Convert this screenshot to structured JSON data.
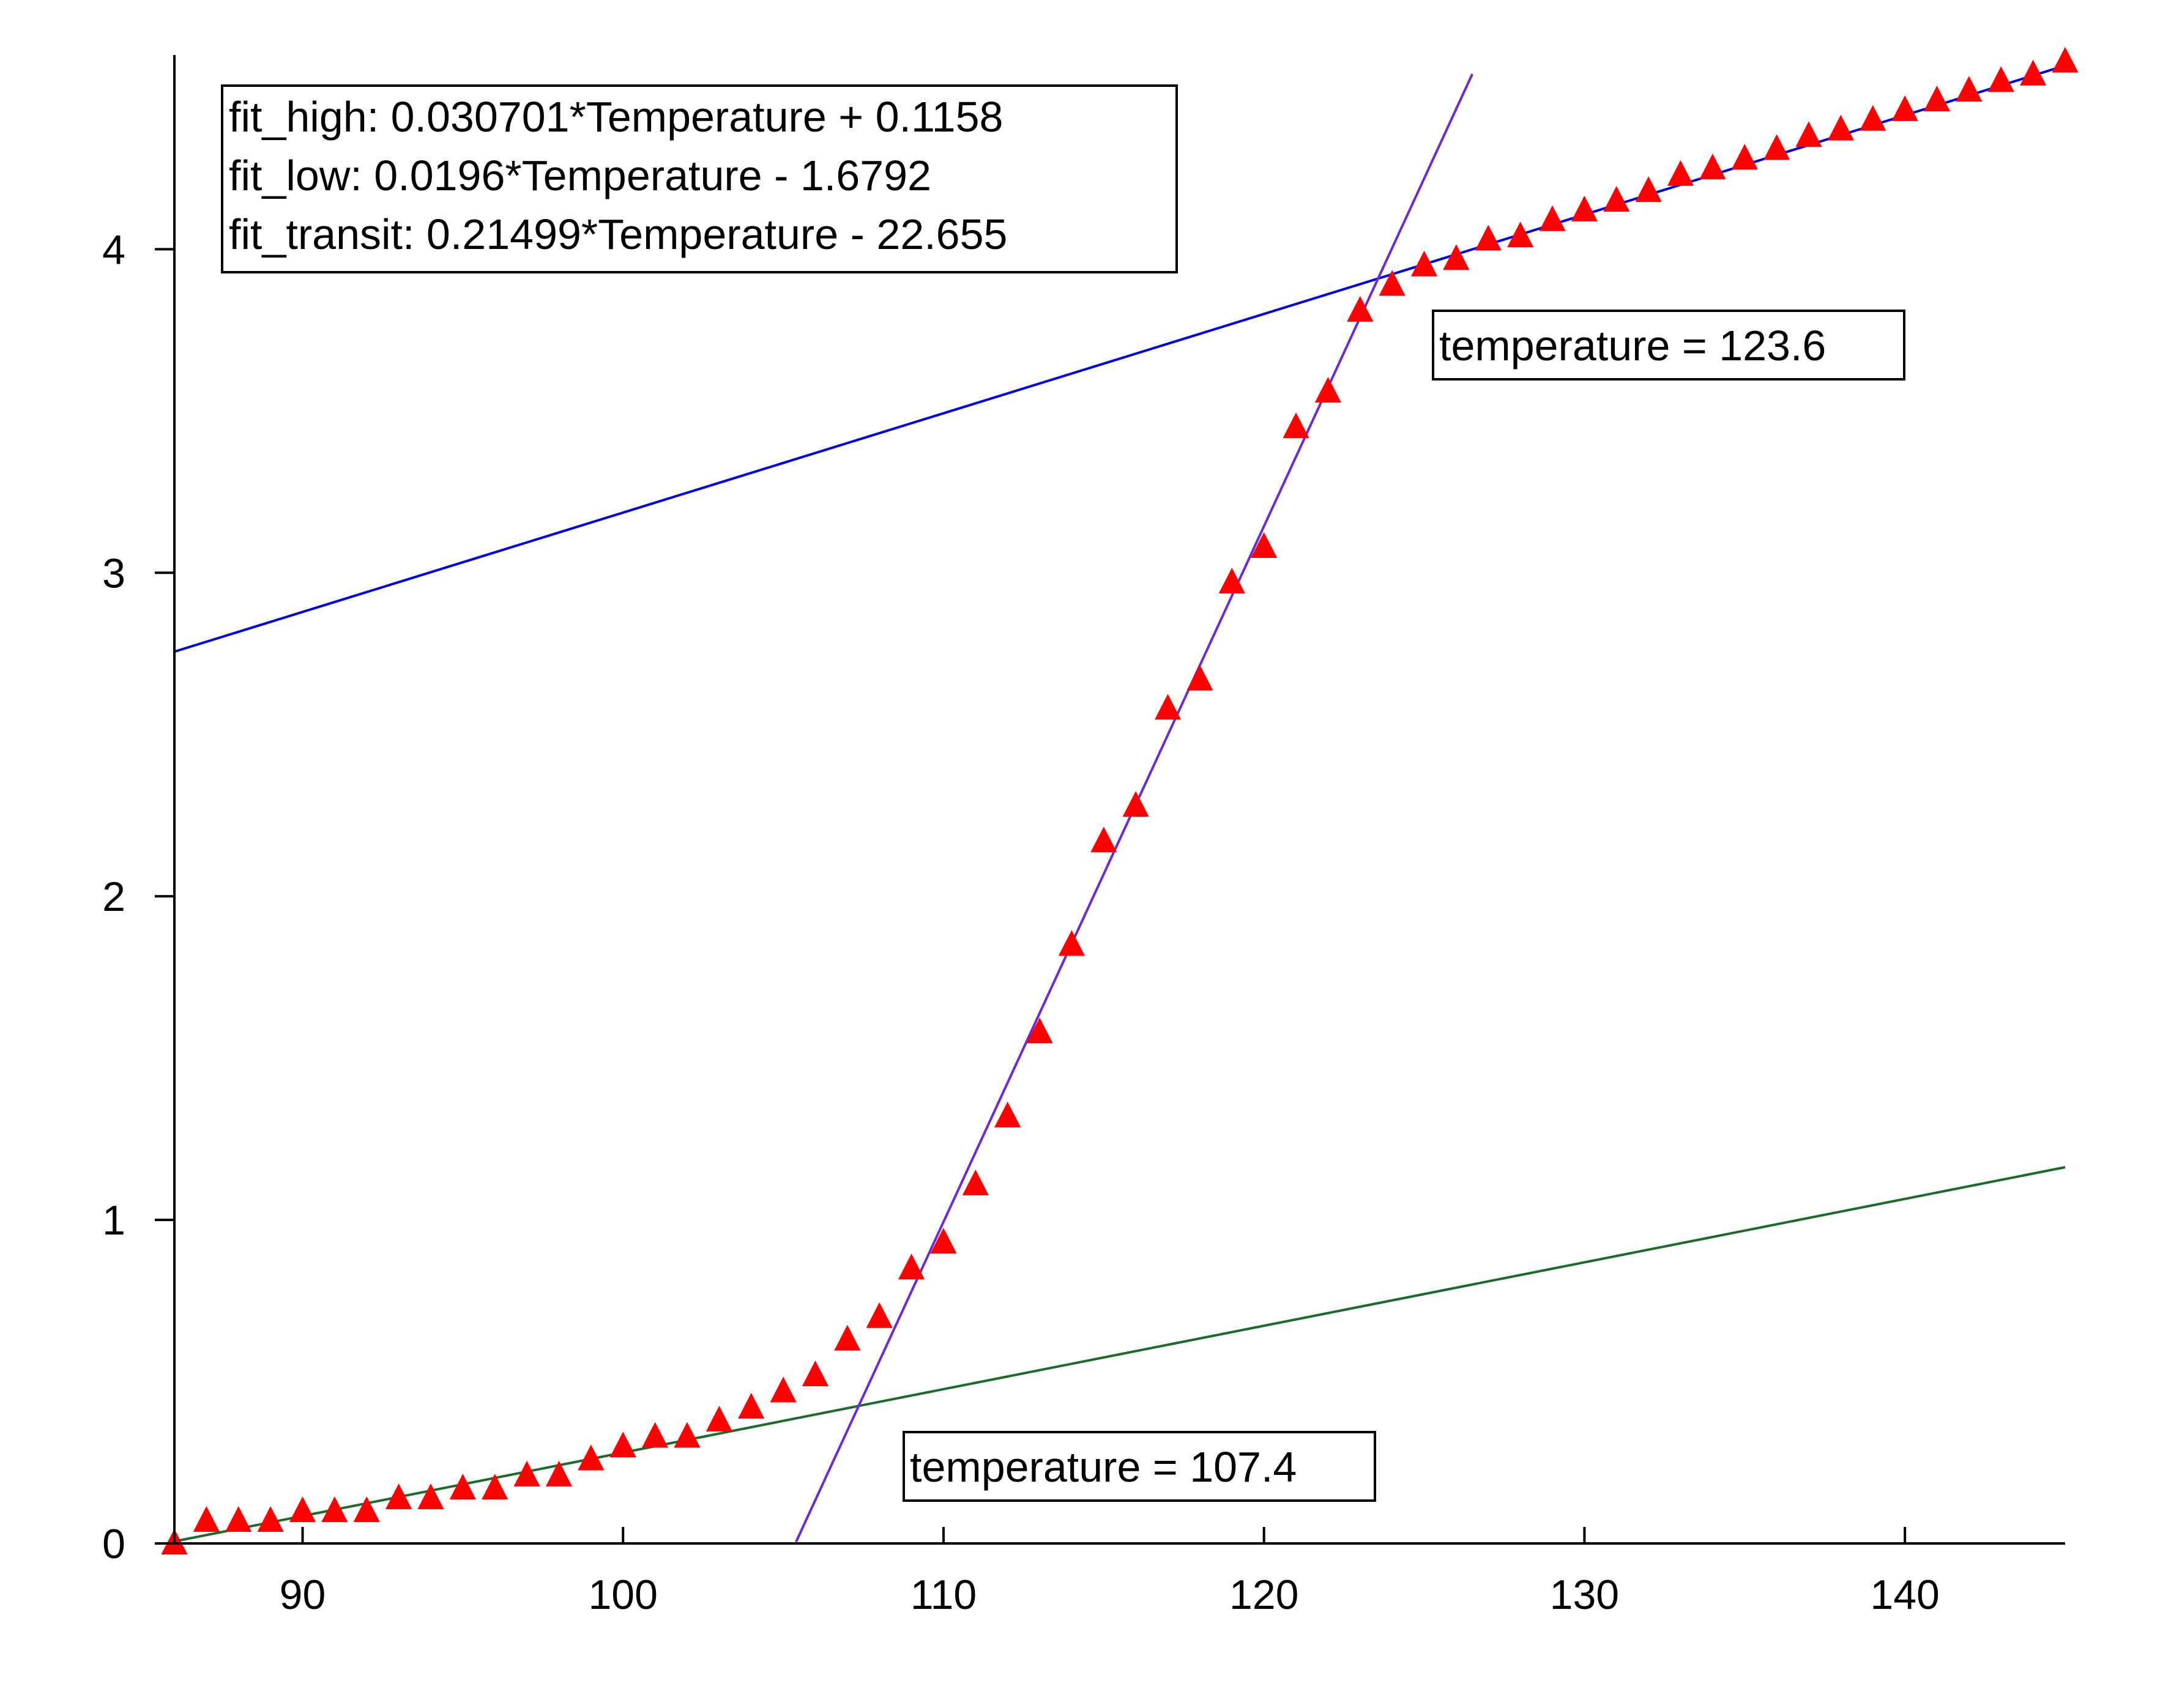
{
  "chart_data": {
    "type": "scatter",
    "title": "",
    "xlabel": "",
    "ylabel": "",
    "xlim": [
      86,
      145
    ],
    "ylim": [
      0,
      4.6
    ],
    "grid": false,
    "x_ticks": [
      90,
      100,
      110,
      120,
      130,
      140
    ],
    "y_ticks": [
      0,
      1,
      2,
      3,
      4
    ],
    "series": [
      {
        "marker": "triangle",
        "color": "#ff0000",
        "x": [
          86,
          87,
          88,
          89,
          90,
          91,
          92,
          93,
          94,
          95,
          96,
          97,
          98,
          99,
          100,
          101,
          102,
          103,
          104,
          105,
          106,
          107,
          108,
          109,
          110,
          111,
          112,
          113,
          114,
          115,
          116,
          117,
          118,
          119,
          120,
          121,
          122,
          123,
          124,
          125,
          126,
          127,
          128,
          129,
          130,
          131,
          132,
          133,
          134,
          135,
          136,
          137,
          138,
          139,
          140,
          141,
          142,
          143,
          144,
          145
        ],
        "y": [
          0.0,
          0.07,
          0.07,
          0.07,
          0.1,
          0.1,
          0.1,
          0.14,
          0.14,
          0.17,
          0.17,
          0.21,
          0.21,
          0.26,
          0.3,
          0.33,
          0.33,
          0.38,
          0.42,
          0.47,
          0.52,
          0.63,
          0.7,
          0.85,
          0.93,
          1.11,
          1.32,
          1.58,
          1.85,
          2.17,
          2.28,
          2.58,
          2.67,
          2.97,
          3.08,
          3.45,
          3.56,
          3.81,
          3.89,
          3.95,
          3.97,
          4.03,
          4.04,
          4.09,
          4.12,
          4.15,
          4.18,
          4.23,
          4.25,
          4.28,
          4.31,
          4.35,
          4.37,
          4.4,
          4.43,
          4.46,
          4.49,
          4.52,
          4.54,
          4.58
        ]
      }
    ],
    "fit_lines": [
      {
        "id": "fit_high",
        "color": "#0000e6",
        "slope": 0.030701,
        "intercept": 0.1158,
        "x_range": [
          86,
          145
        ]
      },
      {
        "id": "fit_low",
        "color": "#1a6b2a",
        "slope": 0.0196,
        "intercept": -1.6792,
        "x_range": [
          86,
          145
        ]
      },
      {
        "id": "fit_transit",
        "color": "#6a2ad8",
        "slope": 0.21499,
        "intercept": -22.655,
        "x_range": [
          105.4,
          126.5
        ]
      }
    ],
    "legend": {
      "placement": "top-left",
      "entries": [
        "fit_high: 0.030701*Temperature + 0.1158",
        "fit_low: 0.0196*Temperature - 1.6792",
        "fit_transit: 0.21499*Temperature - 22.655"
      ]
    },
    "annotations": [
      {
        "text": "temperature = 123.6",
        "x": 123.6,
        "y": 3.95
      },
      {
        "text": "temperature = 107.4",
        "x": 107.4,
        "y": 0.47
      }
    ]
  }
}
